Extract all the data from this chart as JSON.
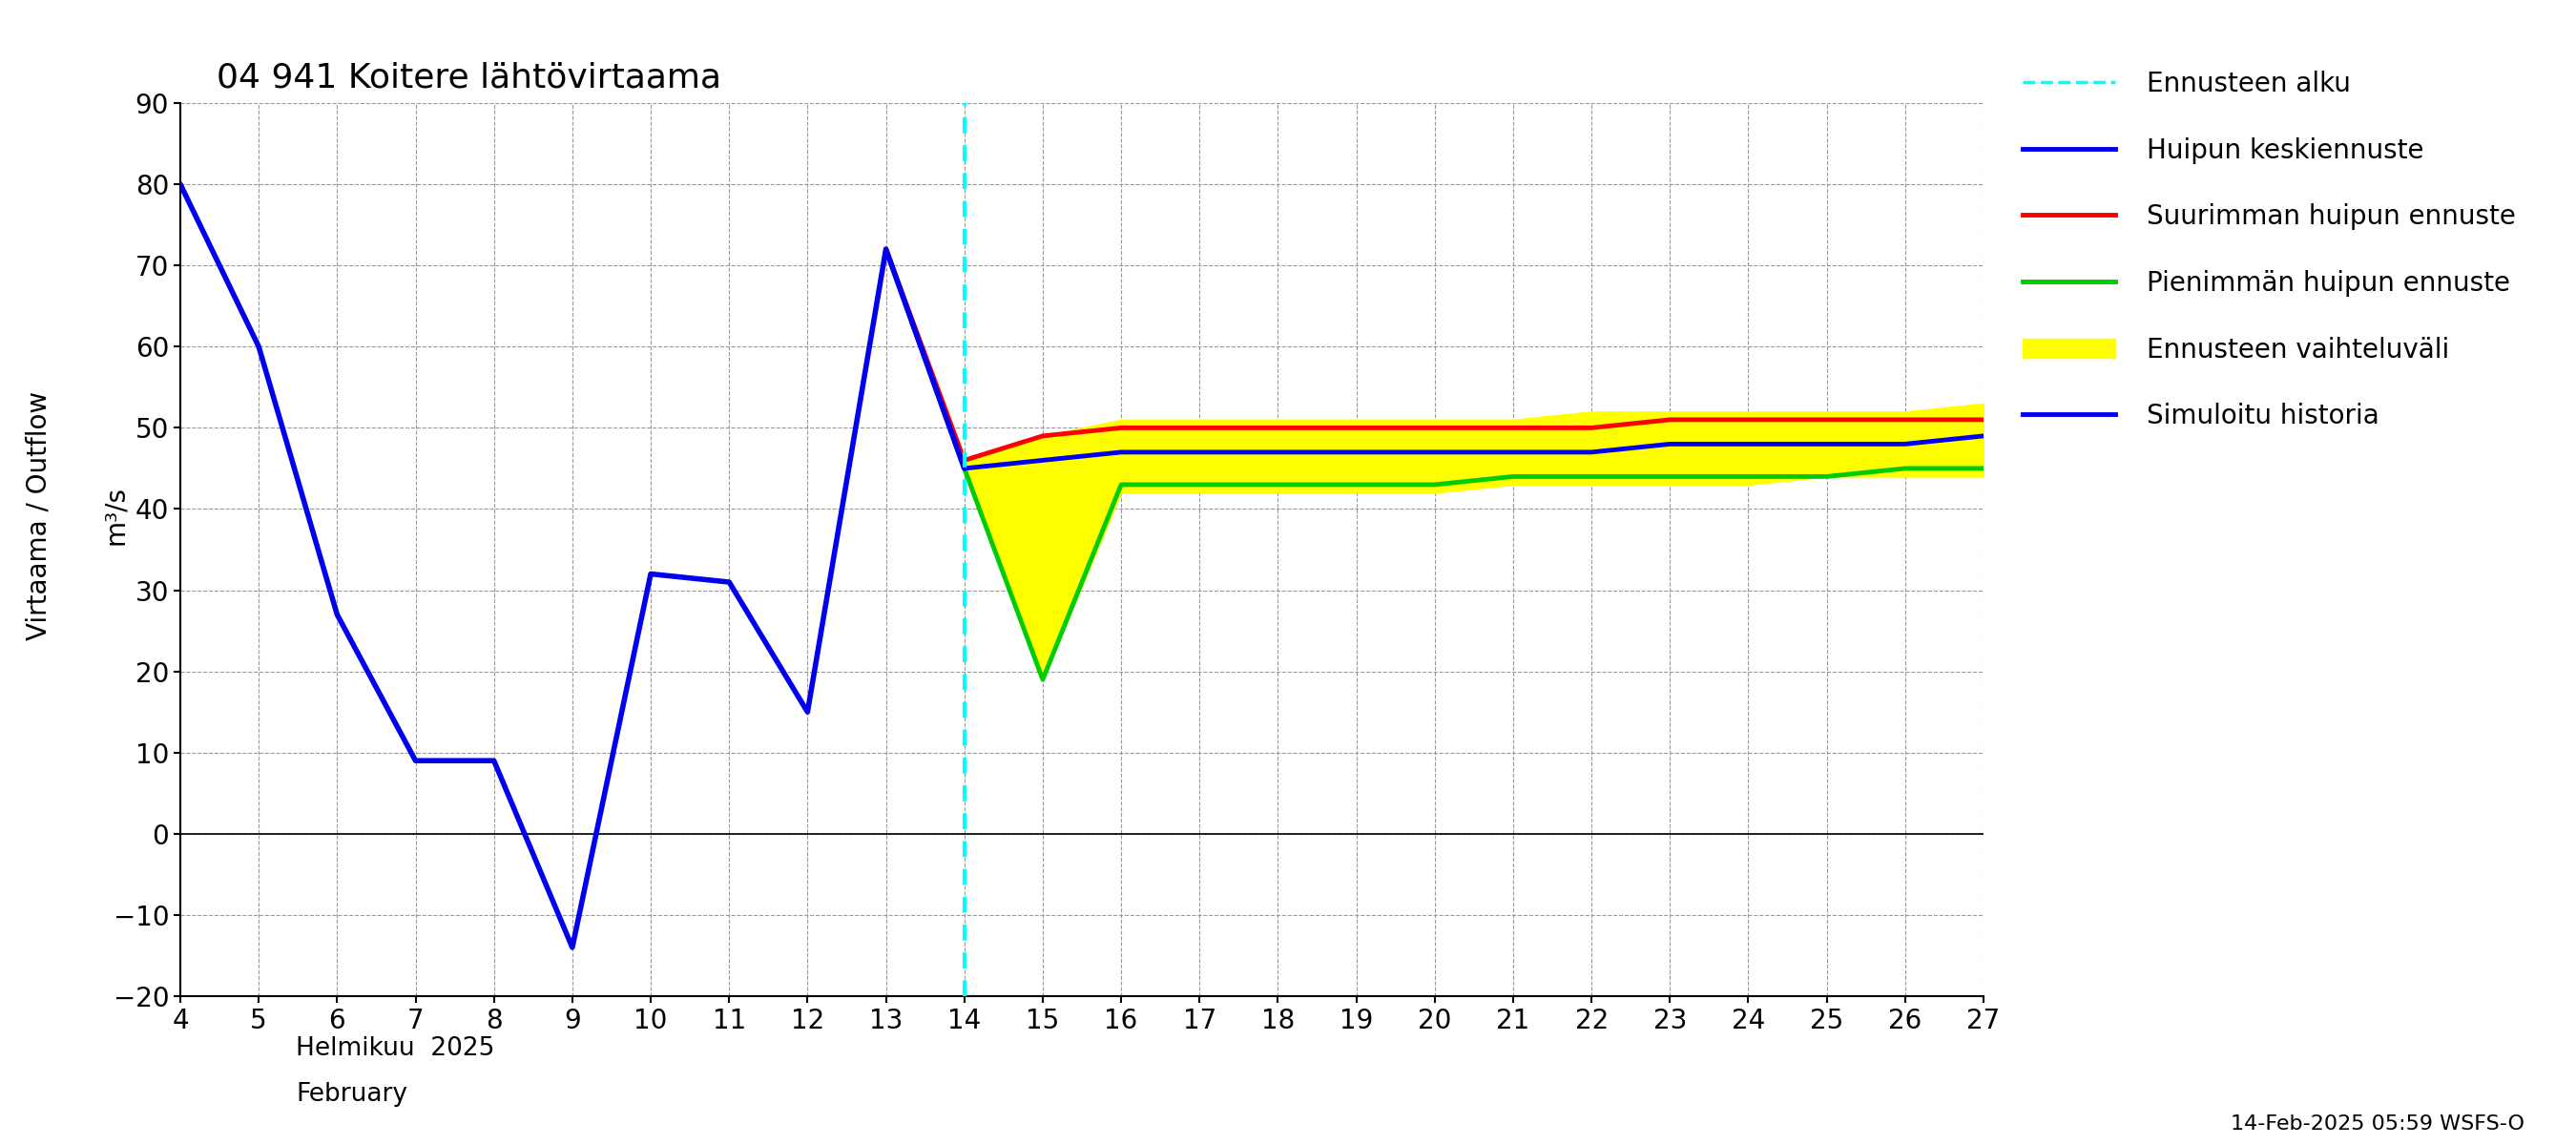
{
  "title": "04 941 Koitere lähtövirtaama",
  "ylabel": "Virtaama / Outflow",
  "ylabel2": "m³/s",
  "xlabel_fi": "Helmikuu  2025",
  "xlabel_en": "February",
  "footnote": "14-Feb-2025 05:59 WSFS-O",
  "ylim": [
    -20,
    90
  ],
  "yticks": [
    -20,
    -10,
    0,
    10,
    20,
    30,
    40,
    50,
    60,
    70,
    80,
    90
  ],
  "xlim": [
    4,
    27
  ],
  "xticks": [
    4,
    5,
    6,
    7,
    8,
    9,
    10,
    11,
    12,
    13,
    14,
    15,
    16,
    17,
    18,
    19,
    20,
    21,
    22,
    23,
    24,
    25,
    26,
    27
  ],
  "forecast_start_x": 14,
  "history_x": [
    4,
    5,
    6,
    7,
    8,
    9,
    10,
    11,
    12,
    13,
    14
  ],
  "history_y": [
    80,
    60,
    27,
    9,
    9,
    -14,
    32,
    31,
    15,
    72,
    45
  ],
  "mean_x": [
    13,
    14,
    15,
    16,
    17,
    18,
    19,
    20,
    21,
    22,
    23,
    24,
    25,
    26,
    27
  ],
  "mean_y": [
    72,
    45,
    46,
    47,
    47,
    47,
    47,
    47,
    47,
    47,
    48,
    48,
    48,
    48,
    49
  ],
  "max_x": [
    13,
    14,
    15,
    16,
    17,
    18,
    19,
    20,
    21,
    22,
    23,
    24,
    25,
    26,
    27
  ],
  "max_y": [
    72,
    46,
    49,
    50,
    50,
    50,
    50,
    50,
    50,
    50,
    51,
    51,
    51,
    51,
    51
  ],
  "min_x": [
    13,
    14,
    15,
    16,
    17,
    18,
    19,
    20,
    21,
    22,
    23,
    24,
    25,
    26,
    27
  ],
  "min_y": [
    72,
    45,
    19,
    43,
    43,
    43,
    43,
    43,
    44,
    44,
    44,
    44,
    44,
    45,
    45
  ],
  "fill_upper_x": [
    13,
    14,
    15,
    16,
    17,
    18,
    19,
    20,
    21,
    22,
    23,
    24,
    25,
    26,
    27
  ],
  "fill_upper_y": [
    72,
    46,
    49,
    51,
    51,
    51,
    51,
    51,
    51,
    52,
    52,
    52,
    52,
    52,
    53
  ],
  "fill_lower_x": [
    13,
    14,
    15,
    16,
    17,
    18,
    19,
    20,
    21,
    22,
    23,
    24,
    25,
    26,
    27
  ],
  "fill_lower_y": [
    72,
    45,
    19,
    42,
    42,
    42,
    42,
    42,
    43,
    43,
    43,
    43,
    44,
    44,
    44
  ],
  "color_history": "#0000ee",
  "color_mean": "#0000ee",
  "color_max": "#ff0000",
  "color_min": "#00cc00",
  "color_fill": "#ffff00",
  "color_vline": "#00ffff",
  "legend_items": [
    {
      "label": "Ennusteen alku",
      "type": "line",
      "color": "#00ffff",
      "lw": 2.5,
      "ls": "dashed"
    },
    {
      "label": "Huipun keskiennuste",
      "type": "line",
      "color": "#0000ee",
      "lw": 3.5,
      "ls": "solid"
    },
    {
      "label": "Suurimman huipun ennuste",
      "type": "line",
      "color": "#ff0000",
      "lw": 3.5,
      "ls": "solid"
    },
    {
      "label": "Pienimmän huipun ennuste",
      "type": "line",
      "color": "#00cc00",
      "lw": 3.5,
      "ls": "solid"
    },
    {
      "label": "Ennusteen vaihteluväli",
      "type": "patch",
      "color": "#ffff00"
    },
    {
      "label": "Simuloitu historia",
      "type": "line",
      "color": "#0000ee",
      "lw": 3.5,
      "ls": "solid"
    }
  ]
}
